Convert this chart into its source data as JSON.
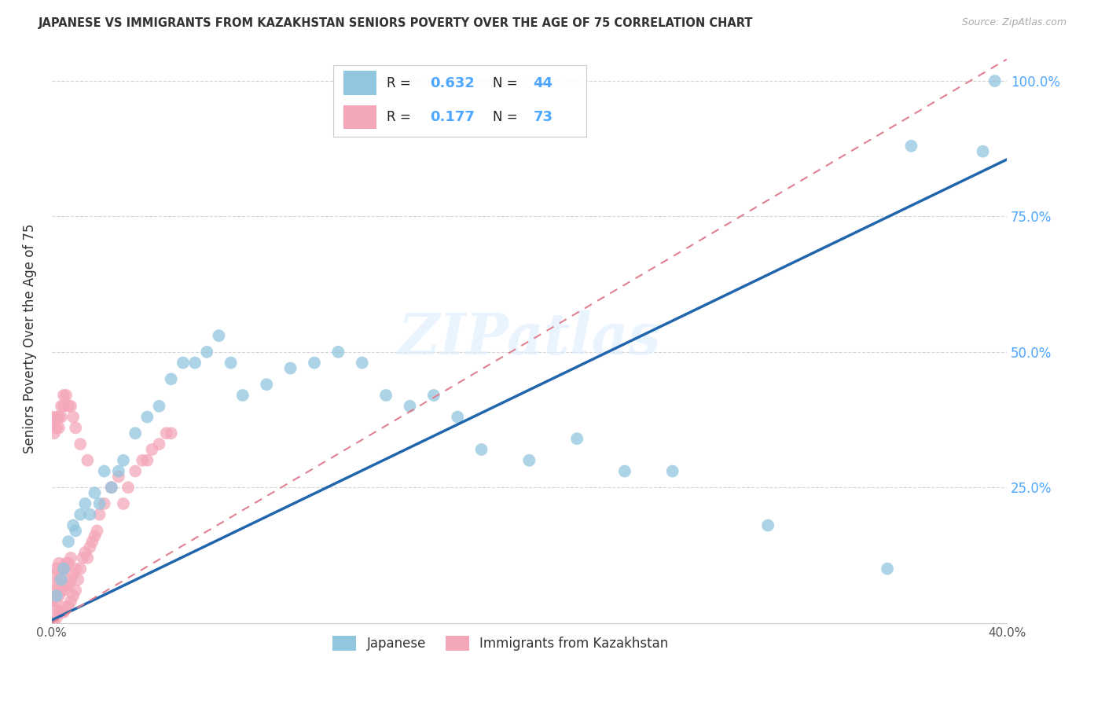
{
  "title": "JAPANESE VS IMMIGRANTS FROM KAZAKHSTAN SENIORS POVERTY OVER THE AGE OF 75 CORRELATION CHART",
  "source": "Source: ZipAtlas.com",
  "ylabel": "Seniors Poverty Over the Age of 75",
  "x_min": 0.0,
  "x_max": 0.4,
  "y_min": 0.0,
  "y_max": 1.05,
  "x_ticks": [
    0.0,
    0.05,
    0.1,
    0.15,
    0.2,
    0.25,
    0.3,
    0.35,
    0.4
  ],
  "y_ticks": [
    0.0,
    0.25,
    0.5,
    0.75,
    1.0
  ],
  "y_tick_labels_right": [
    "",
    "25.0%",
    "50.0%",
    "75.0%",
    "100.0%"
  ],
  "R_japanese": 0.632,
  "N_japanese": 44,
  "R_kazakhstan": 0.177,
  "N_kazakhstan": 73,
  "color_japanese": "#92c5de",
  "color_kazakhstan": "#f4a7b9",
  "color_japanese_line": "#2166ac",
  "color_kazakhstan_line": "#e08090",
  "watermark": "ZIPatlas",
  "jap_line_x0": 0.0,
  "jap_line_y0": 0.005,
  "jap_line_x1": 0.4,
  "jap_line_y1": 0.855,
  "kaz_line_x0": 0.0,
  "kaz_line_y0": 0.0,
  "kaz_line_x1": 0.4,
  "kaz_line_y1": 1.04,
  "japanese_x": [
    0.002,
    0.004,
    0.005,
    0.007,
    0.009,
    0.01,
    0.012,
    0.014,
    0.016,
    0.018,
    0.02,
    0.022,
    0.025,
    0.028,
    0.03,
    0.035,
    0.04,
    0.045,
    0.05,
    0.055,
    0.06,
    0.065,
    0.07,
    0.075,
    0.08,
    0.09,
    0.1,
    0.11,
    0.12,
    0.13,
    0.14,
    0.15,
    0.16,
    0.17,
    0.18,
    0.2,
    0.22,
    0.24,
    0.26,
    0.3,
    0.35,
    0.36,
    0.39,
    0.395
  ],
  "japanese_y": [
    0.05,
    0.08,
    0.1,
    0.15,
    0.18,
    0.17,
    0.2,
    0.22,
    0.2,
    0.24,
    0.22,
    0.28,
    0.25,
    0.28,
    0.3,
    0.35,
    0.38,
    0.4,
    0.45,
    0.48,
    0.48,
    0.5,
    0.53,
    0.48,
    0.42,
    0.44,
    0.47,
    0.48,
    0.5,
    0.48,
    0.42,
    0.4,
    0.42,
    0.38,
    0.32,
    0.3,
    0.34,
    0.28,
    0.28,
    0.18,
    0.1,
    0.88,
    0.87,
    1.0
  ],
  "kazakhstan_x": [
    0.0,
    0.0,
    0.001,
    0.001,
    0.001,
    0.001,
    0.002,
    0.002,
    0.002,
    0.002,
    0.003,
    0.003,
    0.003,
    0.003,
    0.004,
    0.004,
    0.004,
    0.005,
    0.005,
    0.005,
    0.006,
    0.006,
    0.006,
    0.007,
    0.007,
    0.007,
    0.008,
    0.008,
    0.008,
    0.009,
    0.009,
    0.01,
    0.01,
    0.011,
    0.012,
    0.013,
    0.014,
    0.015,
    0.016,
    0.017,
    0.018,
    0.019,
    0.02,
    0.022,
    0.025,
    0.028,
    0.03,
    0.032,
    0.035,
    0.038,
    0.04,
    0.042,
    0.045,
    0.048,
    0.05,
    0.0,
    0.001,
    0.001,
    0.002,
    0.002,
    0.003,
    0.003,
    0.004,
    0.004,
    0.005,
    0.005,
    0.006,
    0.007,
    0.008,
    0.009,
    0.01,
    0.012,
    0.015
  ],
  "kazakhstan_y": [
    0.0,
    0.04,
    0.0,
    0.03,
    0.06,
    0.09,
    0.01,
    0.04,
    0.07,
    0.1,
    0.02,
    0.05,
    0.08,
    0.11,
    0.02,
    0.06,
    0.09,
    0.02,
    0.06,
    0.1,
    0.03,
    0.07,
    0.11,
    0.03,
    0.07,
    0.11,
    0.04,
    0.08,
    0.12,
    0.05,
    0.09,
    0.06,
    0.1,
    0.08,
    0.1,
    0.12,
    0.13,
    0.12,
    0.14,
    0.15,
    0.16,
    0.17,
    0.2,
    0.22,
    0.25,
    0.27,
    0.22,
    0.25,
    0.28,
    0.3,
    0.3,
    0.32,
    0.33,
    0.35,
    0.35,
    0.38,
    0.35,
    0.37,
    0.36,
    0.38,
    0.36,
    0.38,
    0.38,
    0.4,
    0.4,
    0.42,
    0.42,
    0.4,
    0.4,
    0.38,
    0.36,
    0.33,
    0.3
  ]
}
